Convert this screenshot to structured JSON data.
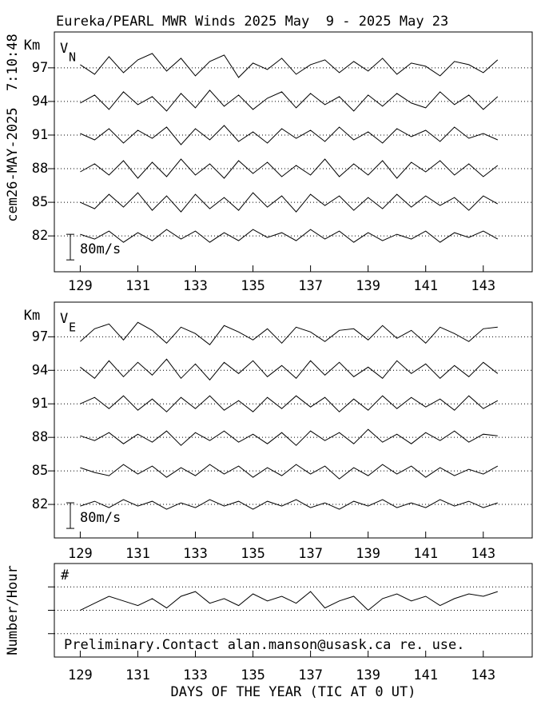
{
  "title": "Eureka/PEARL MWR Winds 2025 May  9 - 2025 May 23",
  "timestamp": "cem26-MAY-2025  7:10:48",
  "x_axis_title": "DAYS OF THE YEAR (TIC AT 0 UT)",
  "chart_data": [
    {
      "type": "line",
      "panel_label": "V",
      "panel_label_sub": "N",
      "y_unit": "Km",
      "scale_bar": {
        "value": 80,
        "label": "80m/s"
      },
      "xlim": [
        128.1,
        144.7
      ],
      "xticks": [
        129,
        131,
        133,
        135,
        137,
        139,
        141,
        143
      ],
      "ylim": [
        78.8,
        100.2
      ],
      "yticks": [
        97,
        94,
        91,
        88,
        85,
        82
      ],
      "grid": true,
      "x": [
        129,
        129.5,
        130,
        130.5,
        131,
        131.5,
        132,
        132.5,
        133,
        133.5,
        134,
        134.5,
        135,
        135.5,
        136,
        136.5,
        137,
        137.5,
        138,
        138.5,
        139,
        139.5,
        140,
        140.5,
        141,
        141.5,
        142,
        142.5,
        143,
        143.5
      ],
      "series": [
        {
          "height": 97,
          "values": [
            10,
            -20,
            35,
            -15,
            25,
            45,
            -10,
            30,
            -25,
            20,
            40,
            -30,
            15,
            -5,
            30,
            -20,
            10,
            25,
            -15,
            20,
            -10,
            30,
            -20,
            15,
            5,
            -25,
            20,
            10,
            -15,
            25
          ]
        },
        {
          "height": 94,
          "values": [
            -5,
            20,
            -25,
            30,
            -10,
            15,
            -30,
            25,
            -20,
            35,
            -15,
            20,
            -25,
            10,
            30,
            -20,
            25,
            -10,
            15,
            -30,
            20,
            -15,
            25,
            -5,
            -20,
            30,
            -10,
            20,
            -25,
            15
          ]
        },
        {
          "height": 91,
          "values": [
            5,
            -15,
            20,
            -25,
            15,
            -10,
            25,
            -30,
            20,
            -15,
            30,
            -20,
            10,
            -25,
            20,
            -10,
            15,
            -20,
            25,
            -15,
            10,
            -25,
            20,
            -5,
            15,
            -20,
            25,
            -10,
            5,
            -15
          ]
        },
        {
          "height": 88,
          "values": [
            -10,
            15,
            -20,
            25,
            -30,
            20,
            -25,
            30,
            -20,
            15,
            -30,
            25,
            -15,
            20,
            -25,
            10,
            -20,
            30,
            -25,
            15,
            -20,
            25,
            -30,
            20,
            -10,
            25,
            -20,
            15,
            -25,
            10
          ]
        },
        {
          "height": 85,
          "values": [
            0,
            -20,
            25,
            -15,
            30,
            -25,
            20,
            -30,
            25,
            -20,
            15,
            -25,
            30,
            -15,
            20,
            -30,
            25,
            -10,
            20,
            -25,
            15,
            -20,
            25,
            -15,
            20,
            -10,
            15,
            -25,
            20,
            -5
          ]
        },
        {
          "height": 82,
          "values": [
            5,
            -10,
            15,
            -20,
            10,
            -15,
            20,
            -10,
            15,
            -20,
            10,
            -15,
            20,
            -5,
            10,
            -15,
            20,
            -10,
            15,
            -20,
            10,
            -15,
            5,
            -10,
            15,
            -20,
            10,
            -5,
            15,
            -10
          ]
        }
      ]
    },
    {
      "type": "line",
      "panel_label": "V",
      "panel_label_sub": "E",
      "y_unit": "Km",
      "scale_bar": {
        "value": 80,
        "label": "80m/s"
      },
      "xlim": [
        128.1,
        144.7
      ],
      "xticks": [
        129,
        131,
        133,
        135,
        137,
        139,
        141,
        143
      ],
      "ylim": [
        79,
        100.1
      ],
      "yticks": [
        97,
        94,
        91,
        88,
        85,
        82
      ],
      "grid": true,
      "x": [
        129,
        129.5,
        130,
        130.5,
        131,
        131.5,
        132,
        132.5,
        133,
        133.5,
        134,
        134.5,
        135,
        135.5,
        136,
        136.5,
        137,
        137.5,
        138,
        138.5,
        139,
        139.5,
        140,
        140.5,
        141,
        141.5,
        142,
        142.5,
        143,
        143.5
      ],
      "series": [
        {
          "height": 97,
          "values": [
            -15,
            25,
            40,
            -10,
            45,
            20,
            -20,
            30,
            10,
            -25,
            35,
            15,
            -10,
            25,
            -20,
            30,
            15,
            -15,
            20,
            25,
            -10,
            35,
            -5,
            20,
            -20,
            30,
            10,
            -15,
            25,
            30
          ]
        },
        {
          "height": 94,
          "values": [
            10,
            -25,
            30,
            -20,
            25,
            -15,
            35,
            -25,
            20,
            -30,
            25,
            -10,
            30,
            -20,
            15,
            -25,
            30,
            -15,
            25,
            -20,
            10,
            -25,
            30,
            -10,
            20,
            -25,
            15,
            -20,
            25,
            -10
          ]
        },
        {
          "height": 91,
          "values": [
            0,
            20,
            -15,
            25,
            -20,
            15,
            -25,
            20,
            -15,
            25,
            -20,
            10,
            -25,
            20,
            -15,
            25,
            -10,
            20,
            -25,
            15,
            -20,
            25,
            -15,
            20,
            -10,
            15,
            -20,
            25,
            -15,
            10
          ]
        },
        {
          "height": 88,
          "values": [
            5,
            -10,
            15,
            -20,
            10,
            -15,
            20,
            -25,
            15,
            -10,
            20,
            -15,
            10,
            -20,
            15,
            -25,
            20,
            -10,
            15,
            -20,
            25,
            -15,
            10,
            -20,
            15,
            -10,
            20,
            -15,
            10,
            5
          ]
        },
        {
          "height": 85,
          "values": [
            10,
            -5,
            -15,
            20,
            -10,
            15,
            -20,
            10,
            -15,
            20,
            -10,
            15,
            -20,
            10,
            -15,
            20,
            -10,
            15,
            -25,
            10,
            -15,
            20,
            -10,
            15,
            -20,
            10,
            -15,
            5,
            -10,
            15
          ]
        },
        {
          "height": 82,
          "values": [
            -5,
            10,
            -10,
            15,
            -5,
            10,
            -15,
            5,
            -10,
            15,
            -5,
            10,
            -15,
            10,
            -5,
            15,
            -10,
            5,
            -15,
            10,
            -5,
            15,
            -10,
            5,
            -10,
            15,
            -5,
            10,
            -10,
            5
          ]
        }
      ]
    },
    {
      "type": "line",
      "y_label": "Number/Hour",
      "marker": "#",
      "note": "Preliminary.Contact alan.manson@usask.ca re. use.",
      "xlim": [
        128.1,
        144.7
      ],
      "xticks": [
        129,
        131,
        133,
        135,
        137,
        139,
        141,
        143
      ],
      "ylim": [
        0,
        40
      ],
      "yticks": [
        10,
        20,
        30
      ],
      "ytick_labels": false,
      "grid": true,
      "x": [
        129,
        129.5,
        130,
        130.5,
        131,
        131.5,
        132,
        132.5,
        133,
        133.5,
        134,
        134.5,
        135,
        135.5,
        136,
        136.5,
        137,
        137.5,
        138,
        138.5,
        139,
        139.5,
        140,
        140.5,
        141,
        141.5,
        142,
        142.5,
        143,
        143.5
      ],
      "values": [
        20,
        23,
        26,
        24,
        22,
        25,
        21,
        26,
        28,
        23,
        25,
        22,
        27,
        24,
        26,
        23,
        28,
        21,
        24,
        26,
        20,
        25,
        27,
        24,
        26,
        22,
        25,
        27,
        26,
        28
      ]
    }
  ]
}
